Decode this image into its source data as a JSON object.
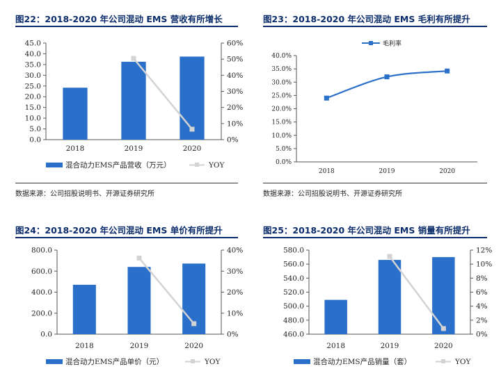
{
  "charts": [
    {
      "id": "c22",
      "title": "图22：2018-2020 年公司混动 EMS 营收有所增长",
      "source": "数据来源：公司招股说明书、开源证券研究所",
      "chart_data": {
        "type": "bar",
        "categories": [
          "2018",
          "2019",
          "2020"
        ],
        "series": [
          {
            "name": "混合动力EMS产品营收（万元）",
            "type": "bar",
            "axis": "left",
            "values": [
              24.2,
              36.3,
              38.7
            ]
          },
          {
            "name": "YOY",
            "type": "line",
            "axis": "right",
            "values": [
              null,
              0.505,
              0.065
            ]
          }
        ],
        "left_ticks": [
          "0.0",
          "5.0",
          "10.0",
          "15.0",
          "20.0",
          "25.0",
          "30.0",
          "35.0",
          "40.0",
          "45.0"
        ],
        "right_ticks": [
          "0%",
          "10%",
          "20%",
          "30%",
          "40%",
          "50%",
          "60%"
        ],
        "ylim": [
          0,
          45
        ],
        "y2lim": [
          0,
          0.6
        ]
      }
    },
    {
      "id": "c23",
      "title": "图23：2018-2020 年公司混动 EMS 毛利有所提升",
      "source": "数据来源：公司招股说明书、开源证券研究所",
      "chart_data": {
        "type": "line",
        "categories": [
          "2018",
          "2019",
          "2020"
        ],
        "series": [
          {
            "name": "毛利率",
            "type": "line",
            "axis": "left",
            "values": [
              0.24,
              0.32,
              0.342
            ]
          }
        ],
        "left_ticks": [
          "0.0%",
          "5.0%",
          "10.0%",
          "15.0%",
          "20.0%",
          "25.0%",
          "30.0%",
          "35.0%",
          "40.0%"
        ],
        "ylim": [
          0,
          0.4
        ]
      }
    },
    {
      "id": "c24",
      "title": "图24：2018-2020 年公司混动 EMS 单价有所提升",
      "source": "",
      "chart_data": {
        "type": "bar",
        "categories": [
          "2018",
          "2019",
          "2020"
        ],
        "series": [
          {
            "name": "混合动力EMS产品单价（元）",
            "type": "bar",
            "axis": "left",
            "values": [
              470,
              640,
              672
            ]
          },
          {
            "name": "YOY",
            "type": "line",
            "axis": "right",
            "values": [
              null,
              0.362,
              0.05
            ]
          }
        ],
        "left_ticks": [
          "0.0",
          "200.0",
          "400.0",
          "600.0",
          "800.0"
        ],
        "right_ticks": [
          "0%",
          "10%",
          "20%",
          "30%",
          "40%"
        ],
        "ylim": [
          0,
          800
        ],
        "y2lim": [
          0,
          0.4
        ]
      }
    },
    {
      "id": "c25",
      "title": "图25：2018-2020 年公司混动 EMS 销量有所提升",
      "source": "",
      "chart_data": {
        "type": "bar",
        "categories": [
          "2018",
          "2019",
          "2020"
        ],
        "series": [
          {
            "name": "混合动力EMS产品销量（套）",
            "type": "bar",
            "axis": "left",
            "values": [
              509,
              566,
              570
            ]
          },
          {
            "name": "YOY",
            "type": "line",
            "axis": "right",
            "values": [
              null,
              0.111,
              0.008
            ]
          }
        ],
        "left_ticks": [
          "460.0",
          "480.0",
          "500.0",
          "520.0",
          "540.0",
          "560.0",
          "580.0"
        ],
        "right_ticks": [
          "0%",
          "2%",
          "4%",
          "6%",
          "8%",
          "10%",
          "12%"
        ],
        "ylim": [
          460,
          580
        ],
        "y2lim": [
          0,
          0.12
        ]
      }
    }
  ],
  "colors": {
    "bar": "#2a6fc9",
    "yoy_line": "#d3d3d3",
    "line": "#2a6fc9",
    "title": "#0b2c6b"
  }
}
